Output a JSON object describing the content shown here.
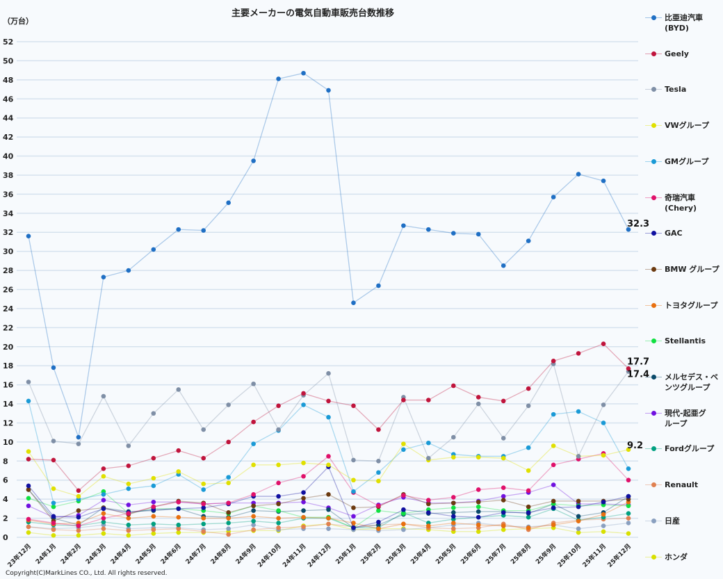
{
  "chart_data": {
    "type": "line",
    "title": "主要メーカーの電気自動車販売台数推移",
    "ylabel": "（万台）",
    "xlabel": "",
    "ylim": [
      0,
      52
    ],
    "yticks": [
      0,
      2,
      4,
      6,
      8,
      10,
      12,
      14,
      16,
      18,
      20,
      22,
      24,
      26,
      28,
      30,
      32,
      34,
      36,
      38,
      40,
      42,
      44,
      46,
      48,
      50,
      52
    ],
    "grid": true,
    "legend_position": "right",
    "categories": [
      "23年12月",
      "24年1月",
      "24年2月",
      "24年3月",
      "24年4月",
      "24年5月",
      "24年6月",
      "24年7月",
      "24年8月",
      "24年9月",
      "24年10月",
      "24年11月",
      "24年12月",
      "25年1月",
      "25年2月",
      "25年3月",
      "25年4月",
      "25年5月",
      "25年6月",
      "25年7月",
      "25年8月",
      "25年9月",
      "25年10月",
      "25年11月",
      "25年12月"
    ],
    "series": [
      {
        "name": "比亜迪汽車\n(BYD)",
        "color": "#1f6fc4",
        "values": [
          31.6,
          17.8,
          10.5,
          27.3,
          28.0,
          30.2,
          32.3,
          32.2,
          35.1,
          39.5,
          48.1,
          48.7,
          46.9,
          24.6,
          26.4,
          32.7,
          32.3,
          31.9,
          31.8,
          28.5,
          31.1,
          35.7,
          38.1,
          37.4,
          32.3
        ],
        "end_label": "32.3"
      },
      {
        "name": "Geely",
        "color": "#c0143c",
        "values": [
          8.2,
          8.1,
          4.9,
          7.2,
          7.5,
          8.3,
          9.1,
          8.3,
          10.0,
          12.1,
          13.8,
          15.1,
          14.3,
          13.8,
          11.3,
          14.4,
          14.4,
          15.9,
          14.7,
          14.3,
          15.6,
          18.5,
          19.3,
          20.3,
          17.7
        ],
        "end_label": "17.7"
      },
      {
        "name": "Tesla",
        "color": "#7f8fa6",
        "values": [
          16.3,
          10.1,
          9.8,
          14.8,
          9.6,
          13.0,
          15.5,
          11.3,
          13.9,
          16.1,
          11.3,
          14.9,
          17.2,
          8.1,
          8.0,
          14.7,
          8.3,
          10.5,
          14.0,
          10.4,
          13.8,
          18.2,
          8.5,
          13.9,
          17.4
        ],
        "end_label": "17.4"
      },
      {
        "name": "VWグループ",
        "color": "#e0e000",
        "values": [
          9.0,
          5.1,
          4.3,
          6.4,
          5.6,
          6.2,
          6.9,
          5.6,
          5.7,
          7.6,
          7.6,
          7.8,
          7.6,
          6.0,
          5.9,
          9.8,
          8.1,
          8.4,
          8.4,
          8.3,
          7.0,
          9.6,
          8.5,
          8.6,
          9.2
        ],
        "end_label": "9.2"
      },
      {
        "name": "GMグループ",
        "color": "#1a9ad6",
        "values": [
          14.3,
          3.6,
          4.0,
          4.5,
          5.1,
          5.4,
          6.6,
          5.0,
          6.3,
          9.8,
          11.2,
          13.9,
          12.6,
          4.8,
          6.8,
          9.2,
          9.9,
          8.7,
          8.5,
          8.5,
          9.4,
          12.9,
          13.2,
          12.0,
          7.2
        ]
      },
      {
        "name": "奇瑞汽車\n(Chery)",
        "color": "#e0106a",
        "values": [
          1.9,
          1.5,
          1.2,
          2.0,
          2.5,
          3.2,
          3.7,
          3.5,
          3.6,
          4.5,
          5.7,
          6.4,
          8.5,
          4.7,
          3.3,
          4.4,
          3.9,
          4.2,
          5.0,
          5.2,
          4.9,
          7.6,
          8.2,
          8.8,
          6.0
        ]
      },
      {
        "name": "GAC",
        "color": "#1010a0",
        "values": [
          5.4,
          2.2,
          2.1,
          3.0,
          2.6,
          2.9,
          3.0,
          3.1,
          3.5,
          4.3,
          4.3,
          4.7,
          7.4,
          1.0,
          1.6,
          2.9,
          2.6,
          2.2,
          2.1,
          2.6,
          2.6,
          3.1,
          3.2,
          3.7,
          4.3
        ]
      },
      {
        "name": "BMW グループ",
        "color": "#6b3a10",
        "values": [
          5.0,
          1.7,
          2.8,
          3.1,
          2.4,
          3.2,
          3.8,
          3.6,
          2.6,
          3.3,
          3.5,
          4.1,
          4.5,
          3.1,
          3.2,
          4.5,
          3.5,
          3.6,
          3.7,
          3.9,
          3.2,
          3.8,
          3.8,
          3.8,
          4.0
        ]
      },
      {
        "name": "トヨタグループ",
        "color": "#e87010",
        "values": [
          1.8,
          1.4,
          1.5,
          2.5,
          2.0,
          2.2,
          2.1,
          2.0,
          2.0,
          2.2,
          2.0,
          2.1,
          2.0,
          1.5,
          0.9,
          1.4,
          1.2,
          1.5,
          1.3,
          1.2,
          1.0,
          1.3,
          1.7,
          2.4,
          3.7
        ]
      },
      {
        "name": "Stellantis",
        "color": "#10e040",
        "values": [
          4.1,
          3.2,
          3.8,
          4.8,
          2.5,
          3.0,
          3.0,
          2.8,
          2.5,
          3.3,
          2.8,
          2.1,
          2.1,
          1.0,
          2.8,
          2.5,
          2.9,
          3.1,
          3.2,
          2.8,
          2.8,
          3.5,
          3.3,
          3.4,
          3.3
        ]
      },
      {
        "name": "メルセデス・ベ\nンツグループ",
        "color": "#0a4a6a",
        "values": [
          5.0,
          2.0,
          1.3,
          3.1,
          2.7,
          2.8,
          3.0,
          2.2,
          2.1,
          2.8,
          2.7,
          2.8,
          2.9,
          1.0,
          1.3,
          2.4,
          2.5,
          2.6,
          2.7,
          2.7,
          2.5,
          3.5,
          2.2,
          2.6,
          4.3
        ]
      },
      {
        "name": "現代-起亜グ\nループ",
        "color": "#7010e0",
        "values": [
          3.3,
          2.1,
          2.3,
          3.9,
          3.4,
          3.7,
          3.7,
          3.5,
          3.6,
          3.6,
          3.6,
          3.7,
          3.1,
          2.2,
          3.4,
          4.2,
          3.6,
          3.6,
          3.8,
          4.3,
          4.7,
          5.5,
          3.5,
          3.5,
          3.4
        ]
      },
      {
        "name": "Fordグループ",
        "color": "#00a080",
        "values": [
          1.6,
          1.3,
          1.2,
          1.6,
          1.3,
          1.4,
          1.3,
          1.4,
          1.5,
          1.7,
          1.5,
          2.0,
          2.0,
          1.0,
          1.0,
          2.6,
          1.5,
          1.9,
          2.1,
          2.3,
          2.1,
          3.0,
          1.8,
          2.1,
          2.5
        ]
      },
      {
        "name": "Renault",
        "color": "#e08050",
        "values": [
          1.1,
          0.8,
          0.7,
          0.9,
          0.7,
          0.8,
          0.9,
          0.6,
          0.3,
          0.8,
          1.0,
          1.1,
          1.4,
          1.1,
          1.3,
          1.4,
          1.0,
          0.9,
          1.0,
          1.4,
          0.8,
          1.5,
          1.8,
          1.9,
          2.0
        ]
      },
      {
        "name": "日産",
        "color": "#8aa0c0",
        "values": [
          1.1,
          0.9,
          1.0,
          1.3,
          0.9,
          1.0,
          1.0,
          0.8,
          0.9,
          1.3,
          0.8,
          0.9,
          0.9,
          0.8,
          0.7,
          0.8,
          1.0,
          1.3,
          1.5,
          1.2,
          1.1,
          1.3,
          0.9,
          1.2,
          1.5
        ]
      },
      {
        "name": "ホンダ",
        "color": "#d8e000",
        "values": [
          0.5,
          0.2,
          0.2,
          0.4,
          0.2,
          0.4,
          0.5,
          0.5,
          0.6,
          0.7,
          0.7,
          1.2,
          1.4,
          0.8,
          0.9,
          0.9,
          0.8,
          0.6,
          0.6,
          0.8,
          0.9,
          1.0,
          0.5,
          0.6,
          0.4
        ]
      }
    ]
  },
  "copyright": "Copyright(C)MarkLines CO., Ltd. All rights reserved."
}
